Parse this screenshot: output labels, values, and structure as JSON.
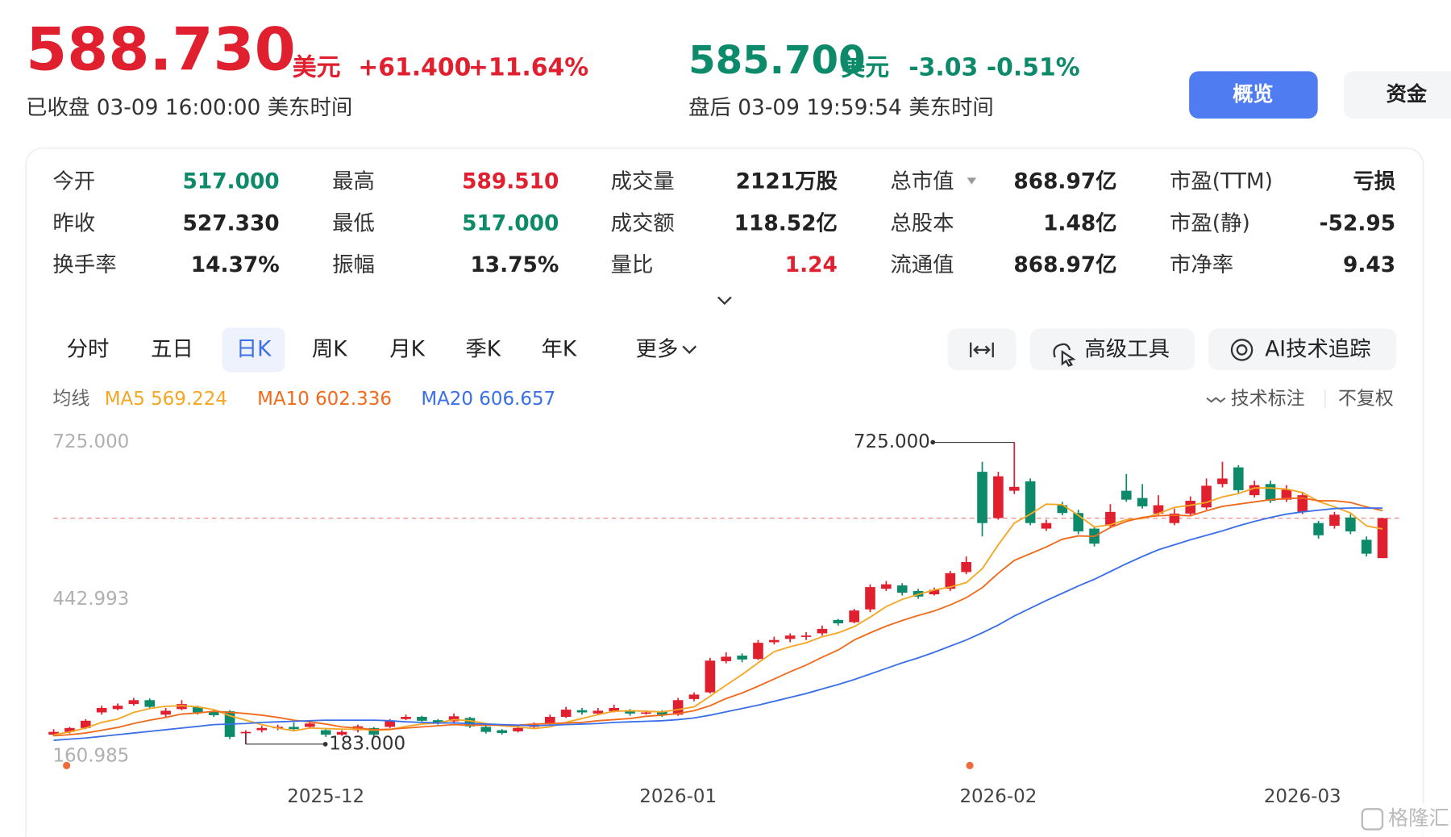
{
  "header": {
    "price": "588.730",
    "currency": "美元",
    "change": "+61.400",
    "pct": "+11.64%",
    "status": "已收盘 03-09 16:00:00 美东时间",
    "after_price": "585.700",
    "after_currency": "美元",
    "after_change": "-3.03",
    "after_pct": "-0.51%",
    "after_status": "盘后 03-09 19:59:54 美东时间",
    "tabs": [
      "概览",
      "资金"
    ]
  },
  "stats": [
    {
      "label": "今开",
      "value": "517.000",
      "color": "#0d8a6a"
    },
    {
      "label": "昨收",
      "value": "527.330",
      "color": "#222222"
    },
    {
      "label": "换手率",
      "value": "14.37%",
      "color": "#222222"
    },
    {
      "label": "最高",
      "value": "589.510",
      "color": "#e0202f"
    },
    {
      "label": "最低",
      "value": "517.000",
      "color": "#0d8a6a"
    },
    {
      "label": "振幅",
      "value": "13.75%",
      "color": "#222222"
    },
    {
      "label": "成交量",
      "value": "2121万股",
      "color": "#222222"
    },
    {
      "label": "成交额",
      "value": "118.52亿",
      "color": "#222222"
    },
    {
      "label": "量比",
      "value": "1.24",
      "color": "#e0202f"
    },
    {
      "label": "总市值",
      "value": "868.97亿",
      "color": "#222222"
    },
    {
      "label": "总股本",
      "value": "1.48亿",
      "color": "#222222"
    },
    {
      "label": "流通值",
      "value": "868.97亿",
      "color": "#222222"
    },
    {
      "label": "市盈(TTM)",
      "value": "亏损",
      "color": "#222222"
    },
    {
      "label": "市盈(静)",
      "value": "-52.95",
      "color": "#222222"
    },
    {
      "label": "市净率",
      "value": "9.43",
      "color": "#222222"
    }
  ],
  "periods": [
    "分时",
    "五日",
    "日K",
    "周K",
    "月K",
    "季K",
    "年K",
    "更多"
  ],
  "tools": [
    "高级工具",
    "AI技术追踪"
  ],
  "ma_label": "均线",
  "chart_options": [
    "技术标注",
    "不复权"
  ],
  "watermark": "格隆汇",
  "chart_data": {
    "type": "candlestick",
    "up_color": "#e0202f",
    "down_color": "#0d8a6a",
    "ylim": [
      123,
      738
    ],
    "yticks": [
      {
        "value": 725,
        "label": "725.000"
      },
      {
        "value": 442.993,
        "label": "442.993"
      },
      {
        "value": 160.985,
        "label": "160.985"
      }
    ],
    "xticks": [
      {
        "value": 17,
        "label": "2025-12"
      },
      {
        "value": 39,
        "label": "2026-01"
      },
      {
        "value": 59,
        "label": "2026-02"
      },
      {
        "value": 78,
        "label": "2026-03"
      }
    ],
    "grid": false,
    "high_mark": {
      "value": 725,
      "label": "725.000"
    },
    "low_mark": {
      "value": 183,
      "label": "183.000"
    },
    "candles": [
      [
        200,
        210,
        198,
        205
      ],
      [
        205,
        214,
        202,
        212
      ],
      [
        212,
        228,
        210,
        225
      ],
      [
        240,
        252,
        236,
        248
      ],
      [
        246,
        256,
        244,
        252
      ],
      [
        255,
        266,
        252,
        262
      ],
      [
        262,
        265,
        246,
        250
      ],
      [
        236,
        248,
        232,
        243
      ],
      [
        246,
        262,
        244,
        255
      ],
      [
        250,
        252,
        236,
        240
      ],
      [
        242,
        244,
        232,
        235
      ],
      [
        242,
        244,
        192,
        196
      ],
      [
        203,
        208,
        183,
        205
      ],
      [
        208,
        216,
        204,
        212
      ],
      [
        212,
        218,
        208,
        214
      ],
      [
        214,
        222,
        206,
        210
      ],
      [
        214,
        226,
        212,
        220
      ],
      [
        208,
        212,
        196,
        200
      ],
      [
        200,
        208,
        198,
        205
      ],
      [
        208,
        218,
        204,
        215
      ],
      [
        212,
        214,
        196,
        200
      ],
      [
        214,
        228,
        212,
        225
      ],
      [
        228,
        236,
        226,
        232
      ],
      [
        232,
        234,
        222,
        225
      ],
      [
        226,
        228,
        218,
        222
      ],
      [
        224,
        238,
        222,
        233
      ],
      [
        230,
        232,
        212,
        215
      ],
      [
        214,
        216,
        202,
        205
      ],
      [
        208,
        210,
        200,
        203
      ],
      [
        206,
        216,
        204,
        212
      ],
      [
        214,
        222,
        212,
        218
      ],
      [
        220,
        236,
        218,
        232
      ],
      [
        232,
        250,
        230,
        245
      ],
      [
        244,
        248,
        236,
        240
      ],
      [
        238,
        248,
        236,
        243
      ],
      [
        242,
        254,
        240,
        248
      ],
      [
        244,
        246,
        234,
        238
      ],
      [
        238,
        244,
        236,
        240
      ],
      [
        242,
        244,
        232,
        236
      ],
      [
        236,
        266,
        234,
        262
      ],
      [
        264,
        276,
        260,
        272
      ],
      [
        276,
        338,
        274,
        333
      ],
      [
        332,
        348,
        328,
        340
      ],
      [
        342,
        346,
        330,
        335
      ],
      [
        336,
        370,
        334,
        365
      ],
      [
        366,
        376,
        362,
        370
      ],
      [
        372,
        382,
        366,
        378
      ],
      [
        376,
        384,
        370,
        378
      ],
      [
        382,
        396,
        378,
        390
      ],
      [
        406,
        408,
        396,
        400
      ],
      [
        402,
        426,
        400,
        423
      ],
      [
        425,
        470,
        420,
        465
      ],
      [
        462,
        476,
        458,
        470
      ],
      [
        468,
        472,
        450,
        455
      ],
      [
        458,
        462,
        444,
        448
      ],
      [
        452,
        464,
        450,
        460
      ],
      [
        462,
        494,
        458,
        490
      ],
      [
        492,
        520,
        488,
        510
      ],
      [
        672,
        690,
        556,
        580
      ],
      [
        589,
        672,
        586,
        664
      ],
      [
        638,
        725,
        632,
        645
      ],
      [
        655,
        660,
        576,
        580
      ],
      [
        570,
        586,
        566,
        580
      ],
      [
        612,
        618,
        594,
        598
      ],
      [
        598,
        604,
        560,
        565
      ],
      [
        570,
        574,
        538,
        543
      ],
      [
        575,
        614,
        572,
        600
      ],
      [
        638,
        668,
        618,
        622
      ],
      [
        625,
        650,
        606,
        610
      ],
      [
        597,
        630,
        594,
        612
      ],
      [
        580,
        606,
        576,
        597
      ],
      [
        597,
        628,
        594,
        620
      ],
      [
        608,
        660,
        604,
        647
      ],
      [
        650,
        690,
        644,
        660
      ],
      [
        680,
        684,
        634,
        639
      ],
      [
        630,
        656,
        626,
        648
      ],
      [
        650,
        656,
        616,
        620
      ],
      [
        622,
        648,
        618,
        640
      ],
      [
        600,
        636,
        596,
        630
      ],
      [
        580,
        584,
        552,
        558
      ],
      [
        575,
        600,
        570,
        595
      ],
      [
        590,
        596,
        560,
        565
      ],
      [
        550,
        556,
        520,
        525
      ],
      [
        517,
        589.51,
        517,
        588.73
      ]
    ],
    "series": [
      {
        "name": "MA5",
        "color": "#f5a623",
        "values": [
          200,
          205,
          212,
          222,
          228,
          240,
          247,
          251,
          252,
          250,
          245,
          234,
          226,
          218,
          212,
          207,
          212,
          211,
          210,
          210,
          208,
          209,
          215,
          219,
          221,
          227,
          225,
          220,
          216,
          214,
          211,
          214,
          222,
          229,
          236,
          242,
          243,
          242,
          241,
          245,
          250,
          269,
          289,
          308,
          329,
          349,
          358,
          365,
          376,
          383,
          394,
          411,
          430,
          443,
          452,
          460,
          465,
          473,
          498,
          541,
          580,
          596,
          614,
          613,
          594,
          573,
          577,
          586,
          588,
          597,
          608,
          612,
          617,
          627,
          633,
          643,
          643,
          641,
          635,
          619,
          609,
          598,
          575,
          569.224
        ]
      },
      {
        "name": "MA10",
        "color": "#f06a1c",
        "values": [
          198,
          200,
          203,
          208,
          213,
          220,
          226,
          231,
          237,
          239,
          242,
          240,
          238,
          235,
          231,
          226,
          223,
          219,
          214,
          212,
          209,
          210,
          212,
          214,
          216,
          218,
          217,
          217,
          217,
          217,
          219,
          220,
          221,
          222,
          225,
          227,
          229,
          233,
          235,
          238,
          243,
          252,
          265,
          275,
          287,
          300,
          313,
          325,
          339,
          352,
          370,
          383,
          395,
          405,
          414,
          422,
          433,
          446,
          464,
          490,
          513,
          525,
          537,
          551,
          557,
          556,
          572,
          583,
          590,
          593,
          594,
          593,
          602,
          610,
          614,
          618,
          622,
          624,
          625,
          620,
          620,
          617,
          609,
          602.336
        ]
      },
      {
        "name": "MA20",
        "color": "#3b6fe8",
        "values": [
          190,
          192,
          194,
          197,
          200,
          203,
          206,
          209,
          212,
          215,
          218,
          219,
          220,
          222,
          223,
          224,
          225,
          226,
          226,
          226,
          226,
          225,
          223,
          222,
          221,
          221,
          220,
          219,
          218,
          217,
          216,
          217,
          218,
          219,
          220,
          222,
          223,
          224,
          225,
          227,
          230,
          235,
          241,
          247,
          253,
          260,
          267,
          274,
          282,
          290,
          299,
          309,
          319,
          329,
          338,
          348,
          359,
          370,
          383,
          397,
          413,
          427,
          441,
          454,
          467,
          479,
          493,
          507,
          520,
          532,
          541,
          550,
          558,
          566,
          575,
          583,
          590,
          596,
          600,
          603,
          606,
          607,
          607,
          606.657
        ]
      }
    ]
  }
}
